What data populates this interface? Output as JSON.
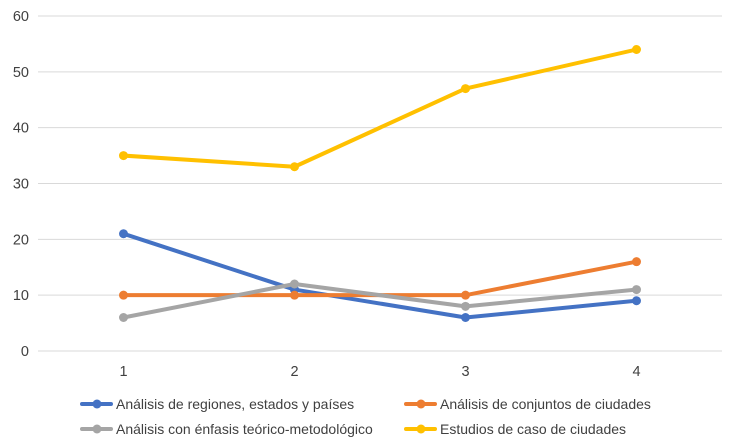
{
  "chart_data": {
    "type": "line",
    "categories": [
      "1",
      "2",
      "3",
      "4"
    ],
    "series": [
      {
        "name": "Análisis de regiones, estados y países",
        "color": "#4472C4",
        "values": [
          21,
          11,
          6,
          9
        ]
      },
      {
        "name": "Análisis de conjuntos de ciudades",
        "color": "#ED7D31",
        "values": [
          10,
          10,
          10,
          16
        ]
      },
      {
        "name": "Análisis con énfasis teórico-metodológico",
        "color": "#A5A5A5",
        "values": [
          6,
          12,
          8,
          11
        ]
      },
      {
        "name": "Estudios de caso de ciudades",
        "color": "#FFC000",
        "values": [
          35,
          33,
          47,
          54
        ]
      }
    ],
    "title": "",
    "xlabel": "",
    "ylabel": "",
    "ylim": [
      0,
      60
    ],
    "yticks": [
      0,
      10,
      20,
      30,
      40,
      50,
      60
    ],
    "grid": "horizontal-only",
    "gridline_color": "#D9D9D9",
    "tick_label_color": "#404040",
    "background": "#FFFFFF",
    "legend_position": "bottom",
    "marker_style": "circle",
    "line_width": 4
  }
}
